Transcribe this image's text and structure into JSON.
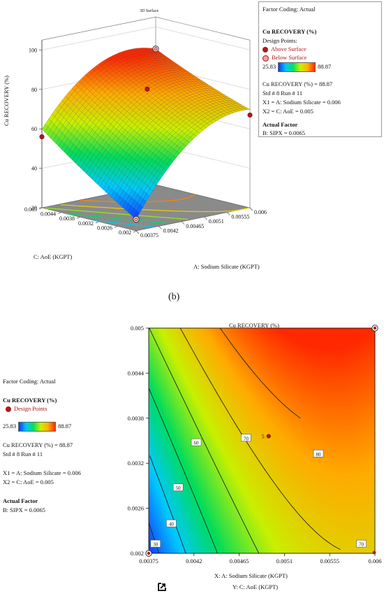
{
  "chart_data": [
    {
      "type": "surface3d",
      "title": "3D Surface",
      "zlabel": "Cu RECOVERY (%)",
      "xlabel": "A: Sodium Silicate (KGPT)",
      "ylabel": "C: AoE (KGPT)",
      "z_ticks": [
        "20",
        "40",
        "60",
        "80",
        "100"
      ],
      "x_ticks": [
        "0.00375",
        "0.0042",
        "0.00465",
        "0.0051",
        "0.00555",
        "0.006"
      ],
      "y_ticks": [
        "0.002",
        "0.0026",
        "0.0032",
        "0.0038",
        "0.0044",
        "0.005"
      ],
      "xlim": [
        0.00375,
        0.006
      ],
      "ylim": [
        0.002,
        0.005
      ],
      "zlim": [
        20,
        100
      ],
      "design_points": [
        {
          "x": 0.006,
          "y": 0.005,
          "z": 88.87,
          "type": "below surface"
        },
        {
          "x": 0.00375,
          "y": 0.002,
          "z": 25.83,
          "type": "below surface"
        },
        {
          "x": 0.0049,
          "y": 0.0035,
          "z": 80,
          "type": "above surface"
        },
        {
          "x": 0.006,
          "y": 0.002,
          "z": 67,
          "type": "above surface"
        },
        {
          "x": 0.00375,
          "y": 0.005,
          "z": 56,
          "type": "above surface"
        }
      ]
    },
    {
      "type": "contour",
      "title": "Cu RECOVERY (%)",
      "xlabel": "X: A: Sodium Silicate  (KGPT)",
      "ylabel": "Y: C: AoE (KGPT)",
      "x_ticks": [
        "0.00375",
        "0.0042",
        "0.00465",
        "0.0051",
        "0.00555",
        "0.006"
      ],
      "y_ticks": [
        "0.002",
        "0.0026",
        "0.0032",
        "0.0038",
        "0.0044",
        "0.005"
      ],
      "xlim": [
        0.00375,
        0.006
      ],
      "ylim": [
        0.002,
        0.005
      ],
      "contour_levels": [
        "30",
        "40",
        "50",
        "60",
        "70",
        "80",
        "70"
      ],
      "design_point_label": "5"
    }
  ],
  "legend_top": {
    "coding": "Factor Coding: Actual",
    "response": "Cu RECOVERY (%)",
    "design_points": "Design Points:",
    "above": "Above Surface",
    "below": "Below Surface",
    "min": "25.83",
    "max": "88.87",
    "value": "Cu RECOVERY (%) = 88.87",
    "std_run": "Std # 8 Run # 11",
    "x1": "X1 = A: Sodium Silicate  = 0.006",
    "x2": "X2 = C: AoE = 0.005",
    "actual_factor": "Actual Factor",
    "factor_b": "B: SIPX = 0.0065"
  },
  "legend_bottom": {
    "coding": "Factor Coding: Actual",
    "response": "Cu RECOVERY (%)",
    "design_points": "Design Points",
    "min": "25.83",
    "max": "88.87",
    "value": "Cu RECOVERY (%) = 88.87",
    "std_run": "Std # 8 Run # 11",
    "x1": "X1 = A: Sodium Silicate  = 0.006",
    "x2": "X2 = C: AoE = 0.005",
    "actual_factor": "Actual Factor",
    "factor_b": "B: SIPX = 0.0065"
  },
  "caption": "(b)",
  "colors": {
    "high": "#ff2200",
    "mid": "#e8f000",
    "low": "#1437ff",
    "floor": "#8a8a8a",
    "design_point": "#b01818"
  }
}
